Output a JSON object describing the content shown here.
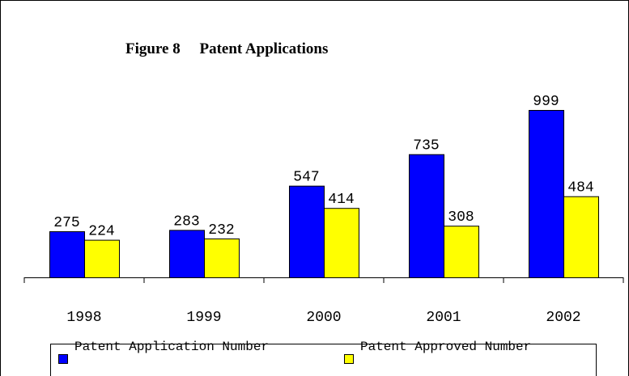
{
  "chart_data": {
    "type": "bar",
    "title": "Figure 8     Patent Applications",
    "categories": [
      "1998",
      "1999",
      "2000",
      "2001",
      "2002"
    ],
    "series": [
      {
        "name": "Patent Application Number",
        "color": "#0000ff",
        "values": [
          275,
          283,
          547,
          735,
          999
        ]
      },
      {
        "name": "Patent Approved Number",
        "color": "#ffff00",
        "values": [
          224,
          232,
          414,
          308,
          484
        ]
      }
    ]
  }
}
